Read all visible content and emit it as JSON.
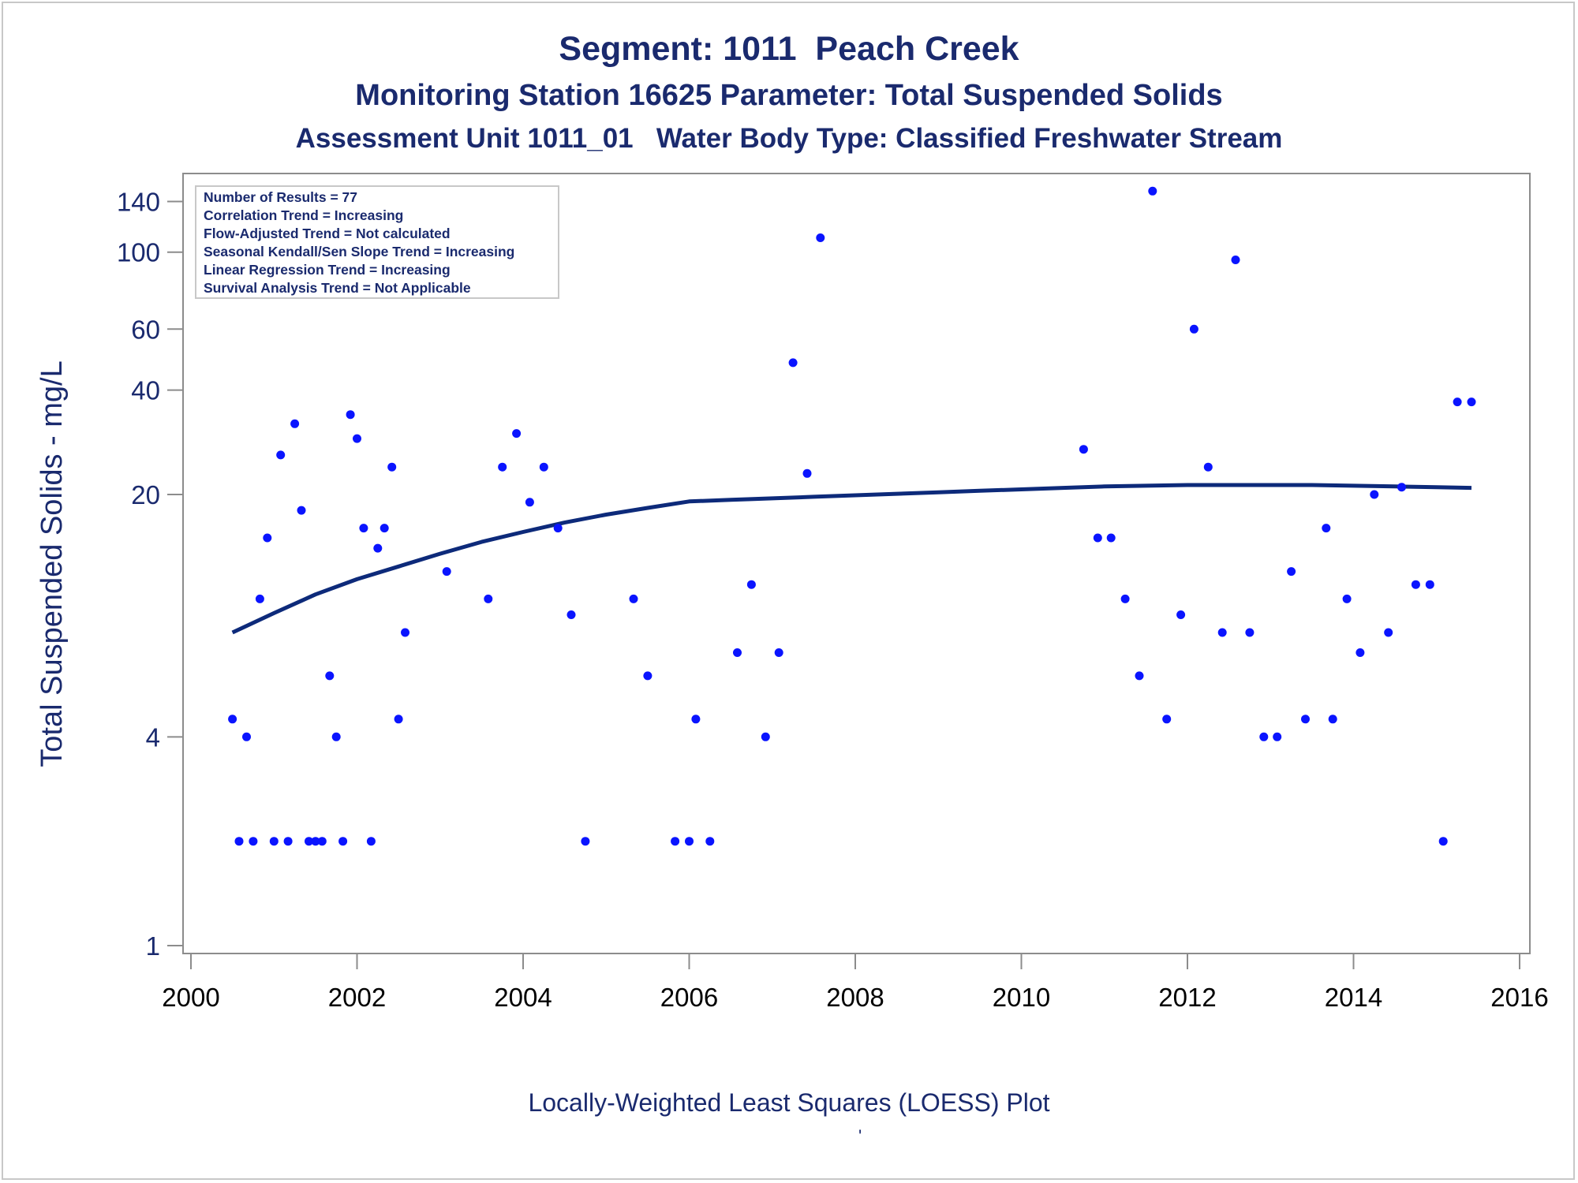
{
  "titles": {
    "line1": "Segment: 1011  Peach Creek",
    "line2": "Monitoring Station 16625 Parameter: Total Suspended Solids",
    "line3": "Assessment Unit 1011_01   Water Body Type: Classified Freshwater Stream"
  },
  "footer": {
    "text": "Locally-Weighted Least Squares (LOESS) Plot",
    "mark": "'"
  },
  "colors": {
    "text": "#1a2a6e",
    "points": "#0a14ff",
    "loess": "#0d2a7a",
    "axis": "#8c8c8c"
  },
  "stats_box": [
    "Number of Results = 77",
    "Correlation Trend = Increasing",
    "Flow-Adjusted Trend = Not calculated",
    "Seasonal Kendall/Sen Slope Trend = Increasing",
    "Linear Regression Trend = Increasing",
    "Survival Analysis Trend = Not Applicable"
  ],
  "chart_data": {
    "type": "scatter",
    "xlabel": "",
    "ylabel": "Total Suspended Solids - mg/L",
    "xlim": [
      2000,
      2016
    ],
    "ylim": [
      1,
      160
    ],
    "y_scale": "log",
    "x_ticks": [
      2000,
      2002,
      2004,
      2006,
      2008,
      2010,
      2012,
      2014,
      2016
    ],
    "y_ticks": [
      1,
      4,
      20,
      40,
      60,
      100,
      140
    ],
    "grid": false,
    "series": [
      {
        "kind": "points",
        "values": [
          [
            2000.5,
            4.5
          ],
          [
            2000.58,
            2
          ],
          [
            2000.67,
            4
          ],
          [
            2000.75,
            2
          ],
          [
            2000.83,
            10
          ],
          [
            2000.92,
            15
          ],
          [
            2001.0,
            2
          ],
          [
            2001.08,
            26
          ],
          [
            2001.17,
            2
          ],
          [
            2001.25,
            32
          ],
          [
            2001.33,
            18
          ],
          [
            2001.42,
            2
          ],
          [
            2001.5,
            2
          ],
          [
            2001.58,
            2
          ],
          [
            2001.67,
            6
          ],
          [
            2001.75,
            4
          ],
          [
            2001.83,
            2
          ],
          [
            2001.92,
            34
          ],
          [
            2002.0,
            29
          ],
          [
            2002.08,
            16
          ],
          [
            2002.17,
            2
          ],
          [
            2002.25,
            14
          ],
          [
            2002.33,
            16
          ],
          [
            2002.42,
            24
          ],
          [
            2002.5,
            4.5
          ],
          [
            2002.58,
            8
          ],
          [
            2003.08,
            12
          ],
          [
            2003.58,
            10
          ],
          [
            2003.75,
            24
          ],
          [
            2003.92,
            30
          ],
          [
            2004.08,
            19
          ],
          [
            2004.25,
            24
          ],
          [
            2004.42,
            16
          ],
          [
            2004.58,
            9
          ],
          [
            2004.75,
            2
          ],
          [
            2005.33,
            10
          ],
          [
            2005.5,
            6
          ],
          [
            2005.83,
            2
          ],
          [
            2006.0,
            2
          ],
          [
            2006.08,
            4.5
          ],
          [
            2006.25,
            2
          ],
          [
            2006.58,
            7
          ],
          [
            2006.75,
            11
          ],
          [
            2006.92,
            4
          ],
          [
            2007.08,
            7
          ],
          [
            2007.25,
            48
          ],
          [
            2007.42,
            23
          ],
          [
            2007.58,
            110
          ],
          [
            2010.75,
            27
          ],
          [
            2010.92,
            15
          ],
          [
            2011.08,
            15
          ],
          [
            2011.25,
            10
          ],
          [
            2011.42,
            6
          ],
          [
            2011.58,
            150
          ],
          [
            2011.75,
            4.5
          ],
          [
            2011.92,
            9
          ],
          [
            2012.08,
            60
          ],
          [
            2012.25,
            24
          ],
          [
            2012.42,
            8
          ],
          [
            2012.58,
            95
          ],
          [
            2012.75,
            8
          ],
          [
            2012.92,
            4
          ],
          [
            2013.08,
            4
          ],
          [
            2013.25,
            12
          ],
          [
            2013.42,
            4.5
          ],
          [
            2013.67,
            16
          ],
          [
            2013.75,
            4.5
          ],
          [
            2013.92,
            10
          ],
          [
            2014.08,
            7
          ],
          [
            2014.25,
            20
          ],
          [
            2014.42,
            8
          ],
          [
            2014.58,
            21
          ],
          [
            2014.75,
            11
          ],
          [
            2014.92,
            11
          ],
          [
            2015.08,
            2
          ],
          [
            2015.25,
            37
          ],
          [
            2015.42,
            37
          ]
        ]
      },
      {
        "kind": "loess",
        "values": [
          [
            2000.5,
            8.0
          ],
          [
            2001.0,
            9.1
          ],
          [
            2001.5,
            10.3
          ],
          [
            2002.0,
            11.4
          ],
          [
            2002.5,
            12.4
          ],
          [
            2003.0,
            13.5
          ],
          [
            2003.5,
            14.6
          ],
          [
            2004.0,
            15.6
          ],
          [
            2004.5,
            16.6
          ],
          [
            2005.0,
            17.5
          ],
          [
            2005.5,
            18.3
          ],
          [
            2006.0,
            19.1
          ],
          [
            2006.5,
            19.3
          ],
          [
            2007.0,
            19.5
          ],
          [
            2007.5,
            19.7
          ],
          [
            2008.0,
            19.9
          ],
          [
            2008.5,
            20.1
          ],
          [
            2009.0,
            20.3
          ],
          [
            2009.5,
            20.5
          ],
          [
            2010.0,
            20.7
          ],
          [
            2010.5,
            20.9
          ],
          [
            2011.0,
            21.1
          ],
          [
            2011.5,
            21.2
          ],
          [
            2012.0,
            21.3
          ],
          [
            2012.5,
            21.3
          ],
          [
            2013.0,
            21.3
          ],
          [
            2013.5,
            21.3
          ],
          [
            2014.0,
            21.2
          ],
          [
            2014.5,
            21.1
          ],
          [
            2015.0,
            21.0
          ],
          [
            2015.42,
            20.9
          ]
        ]
      }
    ]
  }
}
